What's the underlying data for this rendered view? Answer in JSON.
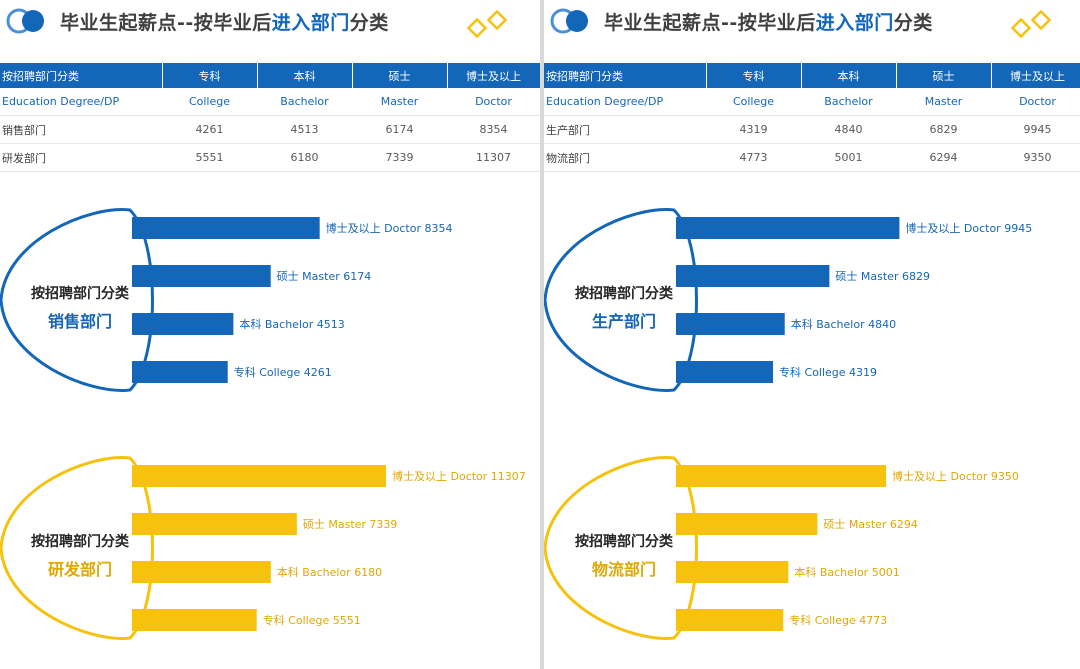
{
  "panels": [
    {
      "title_prefix": "毕业生起薪点--按毕业后",
      "title_highlight": "进入部门",
      "title_suffix": "分类",
      "table": {
        "headers": [
          "按招聘部门分类",
          "专科",
          "本科",
          "硕士",
          "博士及以上"
        ],
        "education_row": [
          "Education Degree/DP",
          "College",
          "Bachelor",
          "Master",
          "Doctor"
        ],
        "rows": [
          [
            "销售部门",
            "4261",
            "4513",
            "6174",
            "8354"
          ],
          [
            "研发部门",
            "5551",
            "6180",
            "7339",
            "11307"
          ]
        ]
      }
    },
    {
      "title_prefix": "毕业生起薪点--按毕业后",
      "title_highlight": "进入部门",
      "title_suffix": "分类",
      "table": {
        "headers": [
          "按招聘部门分类",
          "专科",
          "本科",
          "硕士",
          "博士及以上"
        ],
        "education_row": [
          "Education Degree/DP",
          "College",
          "Bachelor",
          "Master",
          "Doctor"
        ],
        "rows": [
          [
            "生产部门",
            "4319",
            "4840",
            "6829",
            "9945"
          ],
          [
            "物流部门",
            "4773",
            "5001",
            "6294",
            "9350"
          ]
        ]
      }
    }
  ],
  "colors": {
    "blue": "#1466b8",
    "yellow": "#f7c20d",
    "title_gray": "#404040",
    "logo_light": "#4a90d9"
  },
  "chart_data": [
    {
      "type": "bar",
      "orientation": "horizontal",
      "color": "#1466b8",
      "category_caption": "按招聘部门分类",
      "department": "销售部门",
      "categories": [
        "博士及以上 Doctor",
        "硕士 Master",
        "本科 Bachelor",
        "专科 College"
      ],
      "values": [
        8354,
        6174,
        4513,
        4261
      ],
      "xlim": [
        0,
        11307
      ],
      "labels": [
        "博士及以上 Doctor 8354",
        "硕士 Master 6174",
        "本科 Bachelor 4513",
        "专科 College 4261"
      ]
    },
    {
      "type": "bar",
      "orientation": "horizontal",
      "color": "#f7c20d",
      "category_caption": "按招聘部门分类",
      "department": "研发部门",
      "categories": [
        "博士及以上 Doctor",
        "硕士 Master",
        "本科 Bachelor",
        "专科 College"
      ],
      "values": [
        11307,
        7339,
        6180,
        5551
      ],
      "xlim": [
        0,
        11307
      ],
      "labels": [
        "博士及以上 Doctor 11307",
        "硕士 Master 7339",
        "本科 Bachelor 6180",
        "专科 College 5551"
      ]
    },
    {
      "type": "bar",
      "orientation": "horizontal",
      "color": "#1466b8",
      "category_caption": "按招聘部门分类",
      "department": "生产部门",
      "categories": [
        "博士及以上 Doctor",
        "硕士 Master",
        "本科 Bachelor",
        "专科 College"
      ],
      "values": [
        9945,
        6829,
        4840,
        4319
      ],
      "xlim": [
        0,
        11307
      ],
      "labels": [
        "博士及以上 Doctor 9945",
        "硕士 Master 6829",
        "本科 Bachelor 4840",
        "专科 College 4319"
      ]
    },
    {
      "type": "bar",
      "orientation": "horizontal",
      "color": "#f7c20d",
      "category_caption": "按招聘部门分类",
      "department": "物流部门",
      "categories": [
        "博士及以上 Doctor",
        "硕士 Master",
        "本科 Bachelor",
        "专科 College"
      ],
      "values": [
        9350,
        6294,
        5001,
        4773
      ],
      "xlim": [
        0,
        11307
      ],
      "labels": [
        "博士及以上 Doctor 9350",
        "硕士 Master 6294",
        "本科 Bachelor 5001",
        "专科 College 4773"
      ]
    }
  ]
}
